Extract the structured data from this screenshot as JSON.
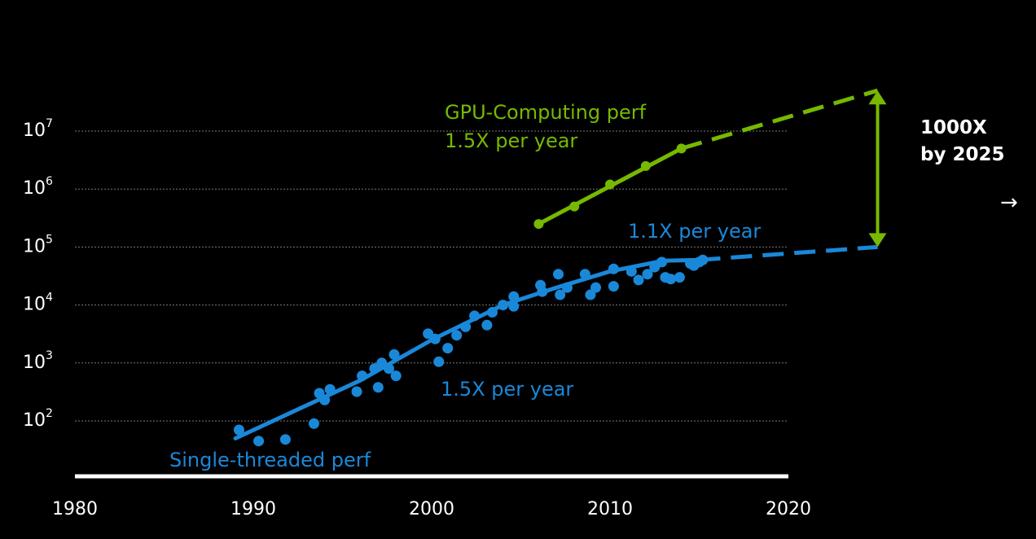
{
  "chart_data": {
    "type": "scatter",
    "title": "",
    "xlabel": "",
    "ylabel": "",
    "y_scale": "log",
    "xlim": [
      1980,
      2020
    ],
    "y_log_range": [
      1.0,
      7.7
    ],
    "x_ticks": [
      "1980",
      "1990",
      "2000",
      "2010",
      "2020"
    ],
    "y_ticks": [
      {
        "base": "10",
        "exp": "2",
        "value": 100
      },
      {
        "base": "10",
        "exp": "3",
        "value": 1000
      },
      {
        "base": "10",
        "exp": "4",
        "value": 10000
      },
      {
        "base": "10",
        "exp": "5",
        "value": 100000
      },
      {
        "base": "10",
        "exp": "6",
        "value": 1000000
      },
      {
        "base": "10",
        "exp": "7",
        "value": 10000000
      }
    ],
    "series": [
      {
        "name": "Single-threaded perf",
        "color": "#1a88d9",
        "points": [
          [
            1989.2,
            70
          ],
          [
            1990.3,
            45
          ],
          [
            1991.8,
            48
          ],
          [
            1993.4,
            90
          ],
          [
            1993.7,
            300
          ],
          [
            1994.0,
            230
          ],
          [
            1994.3,
            350
          ],
          [
            1995.8,
            320
          ],
          [
            1996.1,
            600
          ],
          [
            1996.8,
            800
          ],
          [
            1997.0,
            380
          ],
          [
            1997.2,
            1000
          ],
          [
            1997.6,
            800
          ],
          [
            1997.9,
            1400
          ],
          [
            1998.0,
            600
          ],
          [
            1999.8,
            3200
          ],
          [
            2000.2,
            2600
          ],
          [
            2000.4,
            1050
          ],
          [
            2000.9,
            1800
          ],
          [
            2001.4,
            3000
          ],
          [
            2001.9,
            4200
          ],
          [
            2002.4,
            6500
          ],
          [
            2003.1,
            4500
          ],
          [
            2003.4,
            7500
          ],
          [
            2004.0,
            10000
          ],
          [
            2004.6,
            14000
          ],
          [
            2004.6,
            9500
          ],
          [
            2006.1,
            22000
          ],
          [
            2006.2,
            17000
          ],
          [
            2007.1,
            34000
          ],
          [
            2007.2,
            15000
          ],
          [
            2007.6,
            20000
          ],
          [
            2008.6,
            34000
          ],
          [
            2008.9,
            15000
          ],
          [
            2009.2,
            20000
          ],
          [
            2010.2,
            42000
          ],
          [
            2010.2,
            21000
          ],
          [
            2011.2,
            38000
          ],
          [
            2011.6,
            27000
          ],
          [
            2012.1,
            34000
          ],
          [
            2012.5,
            45000
          ],
          [
            2012.9,
            55000
          ],
          [
            2013.1,
            30000
          ],
          [
            2013.4,
            28000
          ],
          [
            2013.9,
            30000
          ],
          [
            2014.5,
            52000
          ],
          [
            2014.7,
            48000
          ],
          [
            2015.0,
            55000
          ],
          [
            2015.2,
            60000
          ]
        ],
        "trend": [
          [
            1989.0,
            50
          ],
          [
            1996.0,
            500
          ],
          [
            2000.0,
            2500
          ],
          [
            2004.0,
            10000
          ],
          [
            2007.0,
            20000
          ],
          [
            2010.0,
            38000
          ],
          [
            2013.0,
            58000
          ],
          [
            2015.0,
            60000
          ]
        ],
        "projection": [
          [
            2015.0,
            60000
          ],
          [
            2025.0,
            100000
          ]
        ],
        "labels": {
          "name": "Single-threaded perf",
          "rate_early": "1.5X per year",
          "rate_late": "1.1X per year"
        }
      },
      {
        "name": "GPU-Computing perf",
        "color": "#76b900",
        "points": [
          [
            2006.0,
            250000
          ],
          [
            2008.0,
            500000
          ],
          [
            2010.0,
            1200000
          ],
          [
            2012.0,
            2500000
          ],
          [
            2014.0,
            5000000
          ]
        ],
        "trend": [
          [
            2006.0,
            250000
          ],
          [
            2014.0,
            5000000
          ]
        ],
        "projection": [
          [
            2014.0,
            5000000
          ],
          [
            2025.0,
            50000000
          ]
        ],
        "labels": {
          "name": "GPU-Computing perf",
          "rate": "1.5X per year"
        }
      }
    ],
    "annotation": {
      "line1": "1000X",
      "line2": "by 2025",
      "x": 2025.0,
      "from": 100000,
      "to": 50000000
    }
  },
  "ui": {
    "next_arrow": "→"
  }
}
